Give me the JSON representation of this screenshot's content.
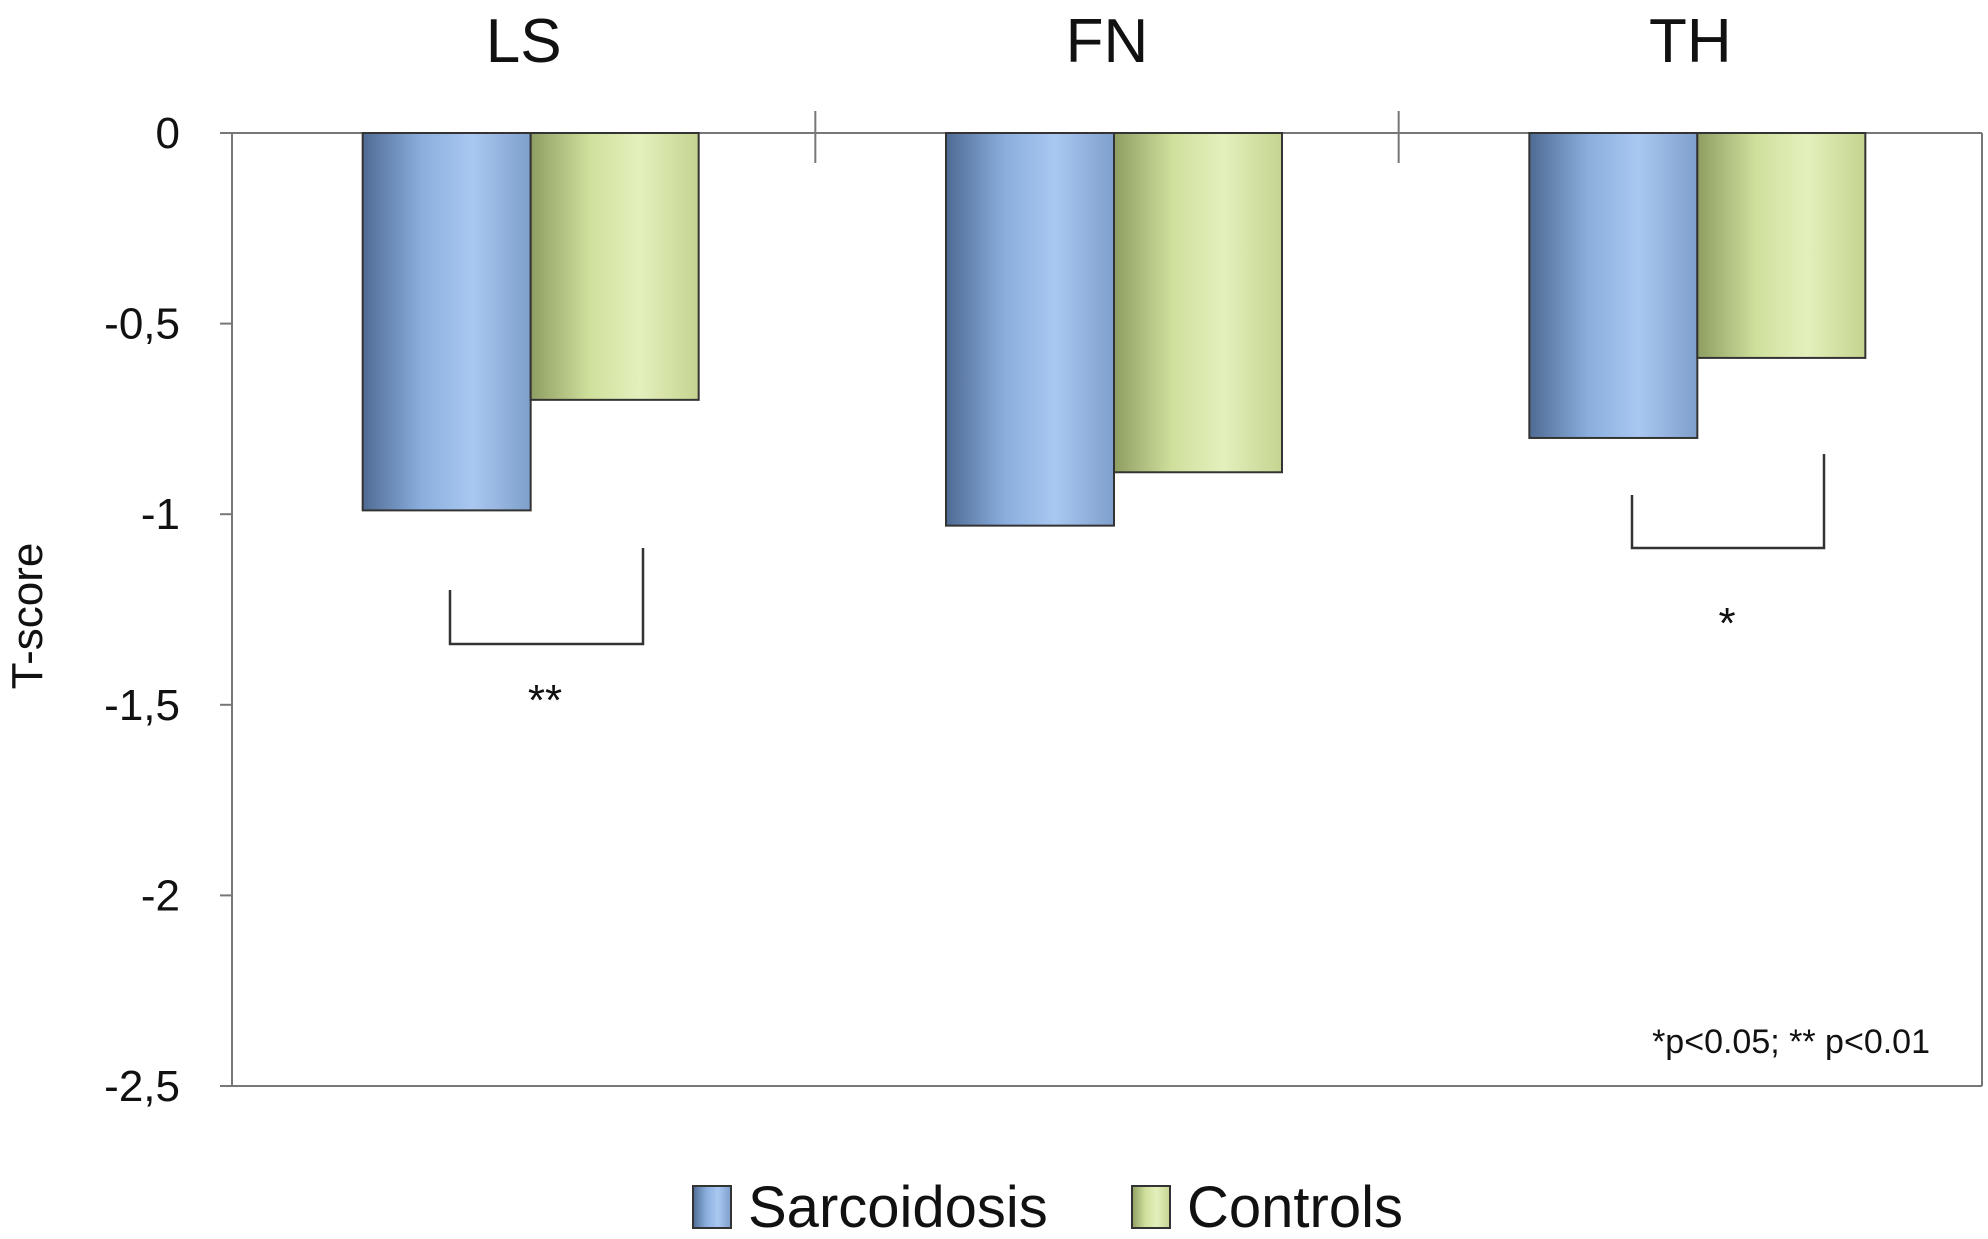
{
  "chart_data": {
    "type": "bar",
    "categories": [
      "LS",
      "FN",
      "TH"
    ],
    "series": [
      {
        "name": "Sarcoidosis",
        "values": [
          -0.99,
          -1.03,
          -0.8
        ]
      },
      {
        "name": "Controls",
        "values": [
          -0.7,
          -0.89,
          -0.59
        ]
      }
    ],
    "ylabel": "T-score",
    "ylim": [
      -2.5,
      0
    ],
    "yticks": [
      0,
      -0.5,
      -1,
      -1.5,
      -2,
      -2.5
    ],
    "ytick_labels": [
      "0",
      "-0,5",
      "-1",
      "-1,5",
      "-2",
      "-2,5"
    ],
    "category_position": "top",
    "legend_position": "bottom",
    "grid": false,
    "colors": {
      "Sarcoidosis": "#8fb3e3",
      "Controls": "#d4e6a4"
    },
    "significance": [
      {
        "category": "LS",
        "label": "**"
      },
      {
        "category": "TH",
        "label": "*"
      }
    ],
    "annotation": "*p<0.05; ** p<0.01"
  }
}
